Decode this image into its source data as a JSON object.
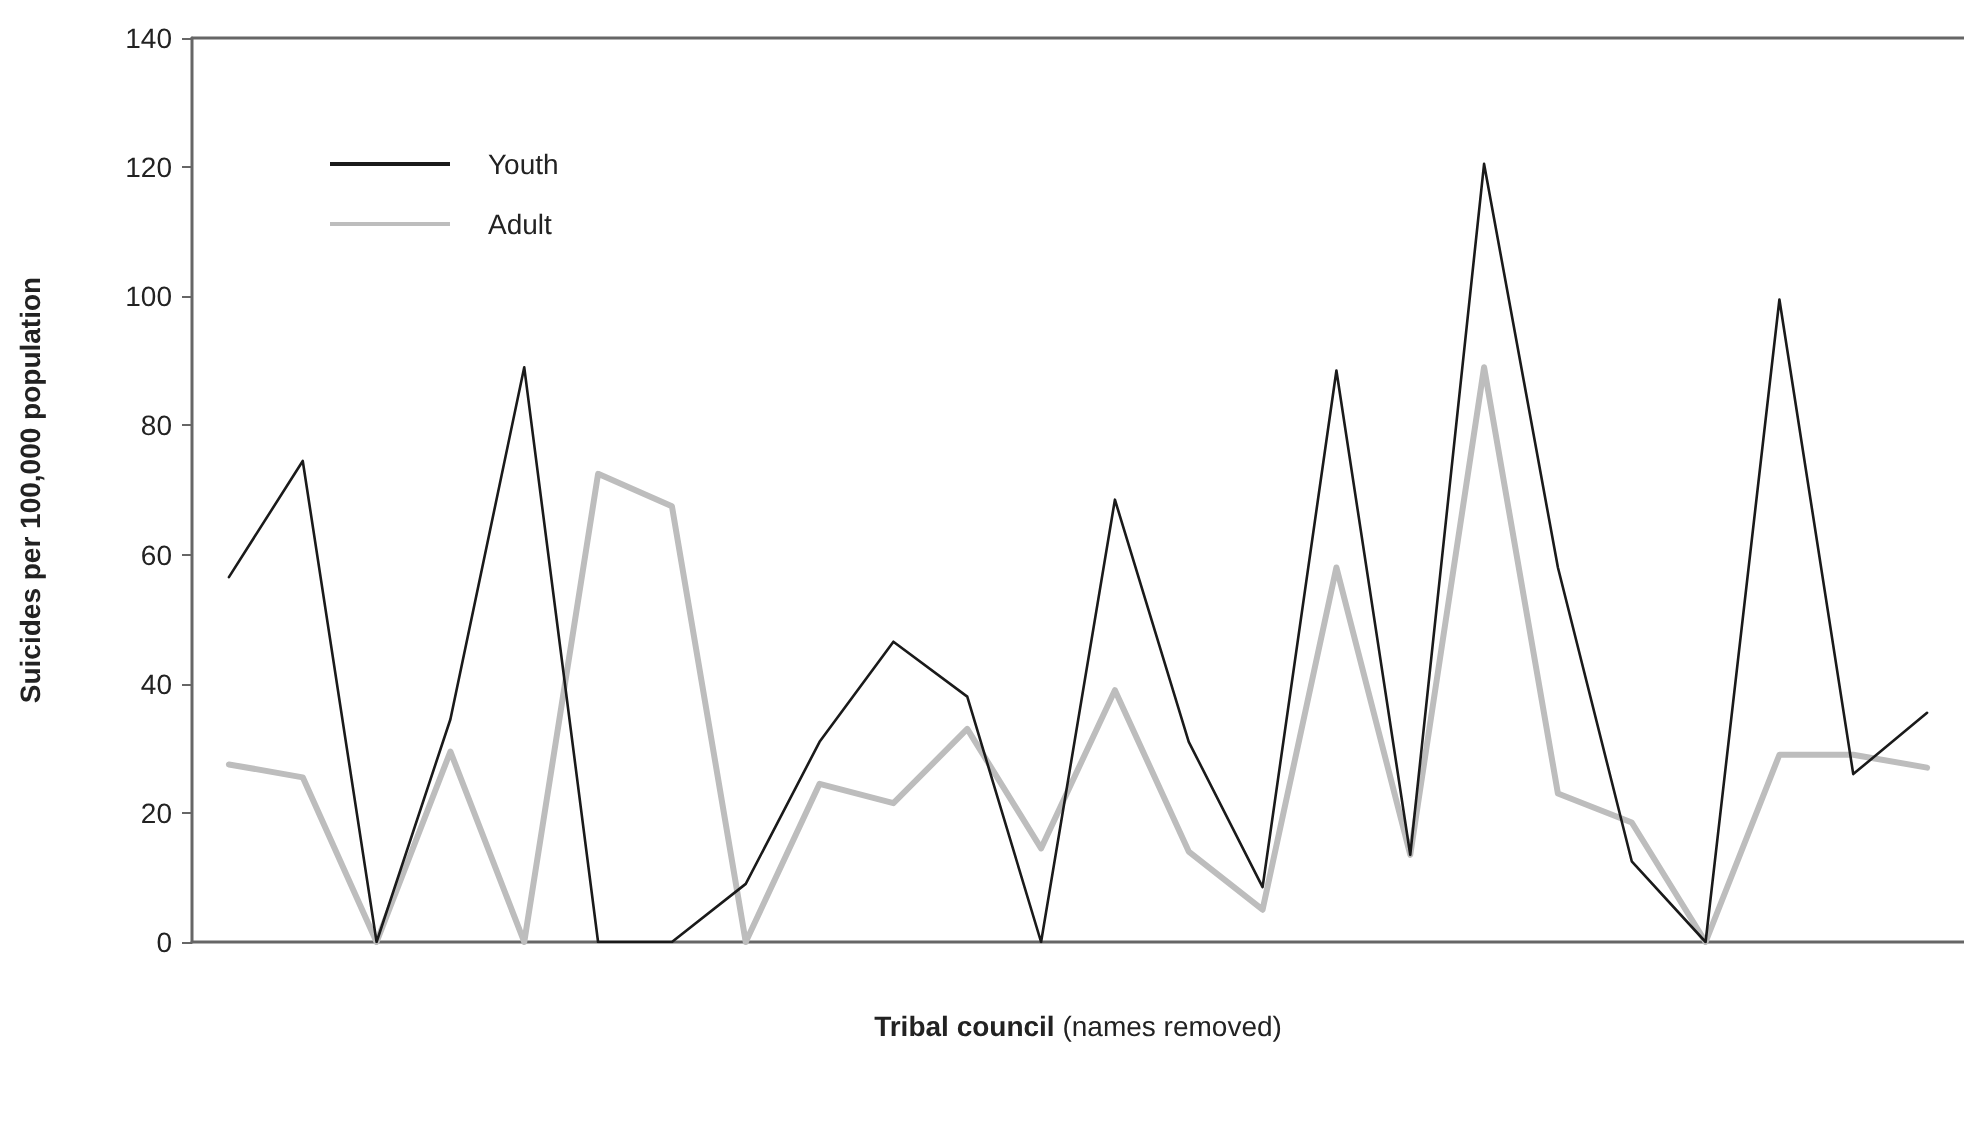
{
  "chart_data": {
    "type": "line",
    "xlabel": "Tribal council (names removed)",
    "ylabel": "Suicides per 100,000 population",
    "categories": [
      null,
      null,
      null,
      null,
      null,
      null,
      null,
      null,
      null,
      null,
      null,
      null,
      null,
      null,
      null,
      null,
      null,
      null,
      null,
      null,
      null,
      null,
      null,
      null
    ],
    "series": [
      {
        "name": "Youth",
        "color": "#1a1a1a",
        "values": [
          56.5,
          74.5,
          0,
          34.5,
          89,
          0,
          0,
          9,
          31,
          46.5,
          38,
          0,
          68.5,
          31,
          8.5,
          88.5,
          13.5,
          120.5,
          58,
          12.5,
          0,
          99.5,
          26,
          35.5
        ]
      },
      {
        "name": "Adult",
        "color": "#bdbdbd",
        "values": [
          27.5,
          25.5,
          0,
          29.5,
          0,
          72.5,
          67.5,
          0,
          24.5,
          21.5,
          33,
          14.5,
          39,
          14,
          5,
          58,
          13.5,
          89,
          23,
          18.5,
          0,
          29,
          29,
          27
        ]
      }
    ],
    "ylim": [
      0,
      140
    ],
    "yticks": [
      0,
      20,
      40,
      60,
      80,
      100,
      120,
      140
    ],
    "grid": false,
    "legend": "top left",
    "tick_labels": "y",
    "marker": "none",
    "line_style": "solid"
  }
}
